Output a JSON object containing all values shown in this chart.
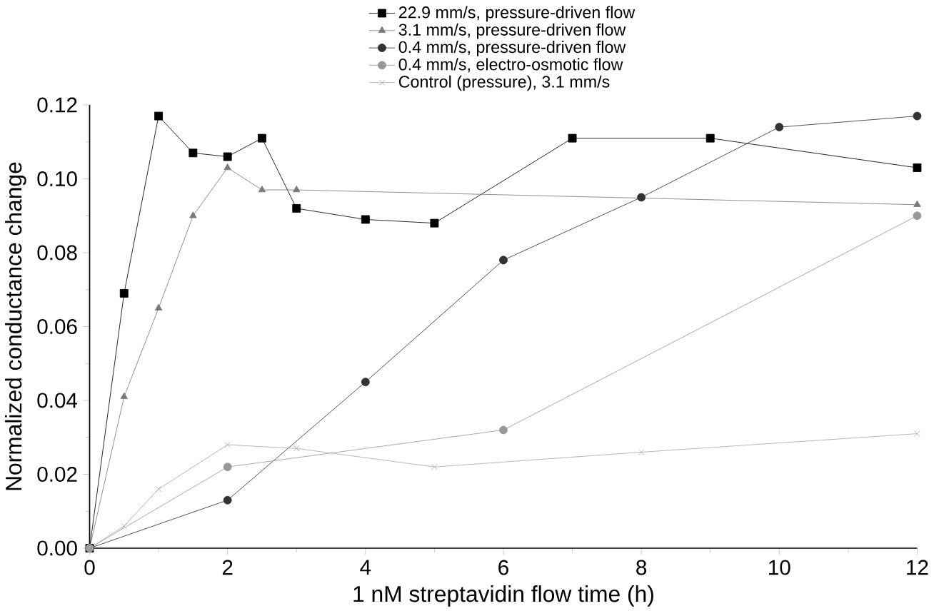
{
  "chart_data": {
    "type": "line",
    "xlabel": "1 nM streptavidin flow time (h)",
    "ylabel": "Normalized conductance change",
    "xlim": [
      0,
      12
    ],
    "xticks": [
      0,
      2,
      4,
      6,
      8,
      10,
      12
    ],
    "ylim": [
      0,
      0.12
    ],
    "yticks": [
      {
        "value": 0,
        "label": "0.00"
      },
      0.02,
      0.04,
      0.06,
      0.08,
      {
        "value": 0.1,
        "label": "0.10"
      },
      0.12
    ],
    "legend": "top",
    "grid": false,
    "series": [
      {
        "name": "22.9 mm/s, pressure-driven flow",
        "color": "#000000",
        "marker": "square",
        "x": [
          0,
          0.5,
          1,
          1.5,
          2,
          2.5,
          3,
          4,
          5,
          7,
          9,
          12
        ],
        "values": [
          0,
          0.069,
          0.117,
          0.107,
          0.106,
          0.111,
          0.092,
          0.089,
          0.088,
          0.111,
          0.111,
          0.103
        ]
      },
      {
        "name": "3.1 mm/s, pressure-driven flow",
        "color": "#7a7a7a",
        "marker": "triangle",
        "x": [
          0,
          0.5,
          1,
          1.5,
          2,
          2.5,
          3,
          12
        ],
        "values": [
          0,
          0.041,
          0.065,
          0.09,
          0.103,
          0.097,
          0.097,
          0.093
        ]
      },
      {
        "name": "0.4 mm/s, pressure-driven flow",
        "color": "#333333",
        "marker": "circle",
        "x": [
          0,
          2,
          4,
          6,
          8,
          10,
          12
        ],
        "values": [
          0,
          0.013,
          0.045,
          0.078,
          0.095,
          0.114,
          0.117
        ]
      },
      {
        "name": "0.4 mm/s, electro-osmotic flow",
        "color": "#999999",
        "marker": "circle",
        "x": [
          0,
          2,
          6,
          12
        ],
        "values": [
          0,
          0.022,
          0.032,
          0.09
        ]
      },
      {
        "name": "Control (pressure), 3.1 mm/s",
        "color": "#aaaaaa",
        "marker": "cross",
        "x": [
          0,
          0.5,
          1,
          2,
          3,
          5,
          8,
          12
        ],
        "values": [
          0,
          0.006,
          0.016,
          0.028,
          0.027,
          0.022,
          0.026,
          0.031
        ]
      }
    ]
  }
}
